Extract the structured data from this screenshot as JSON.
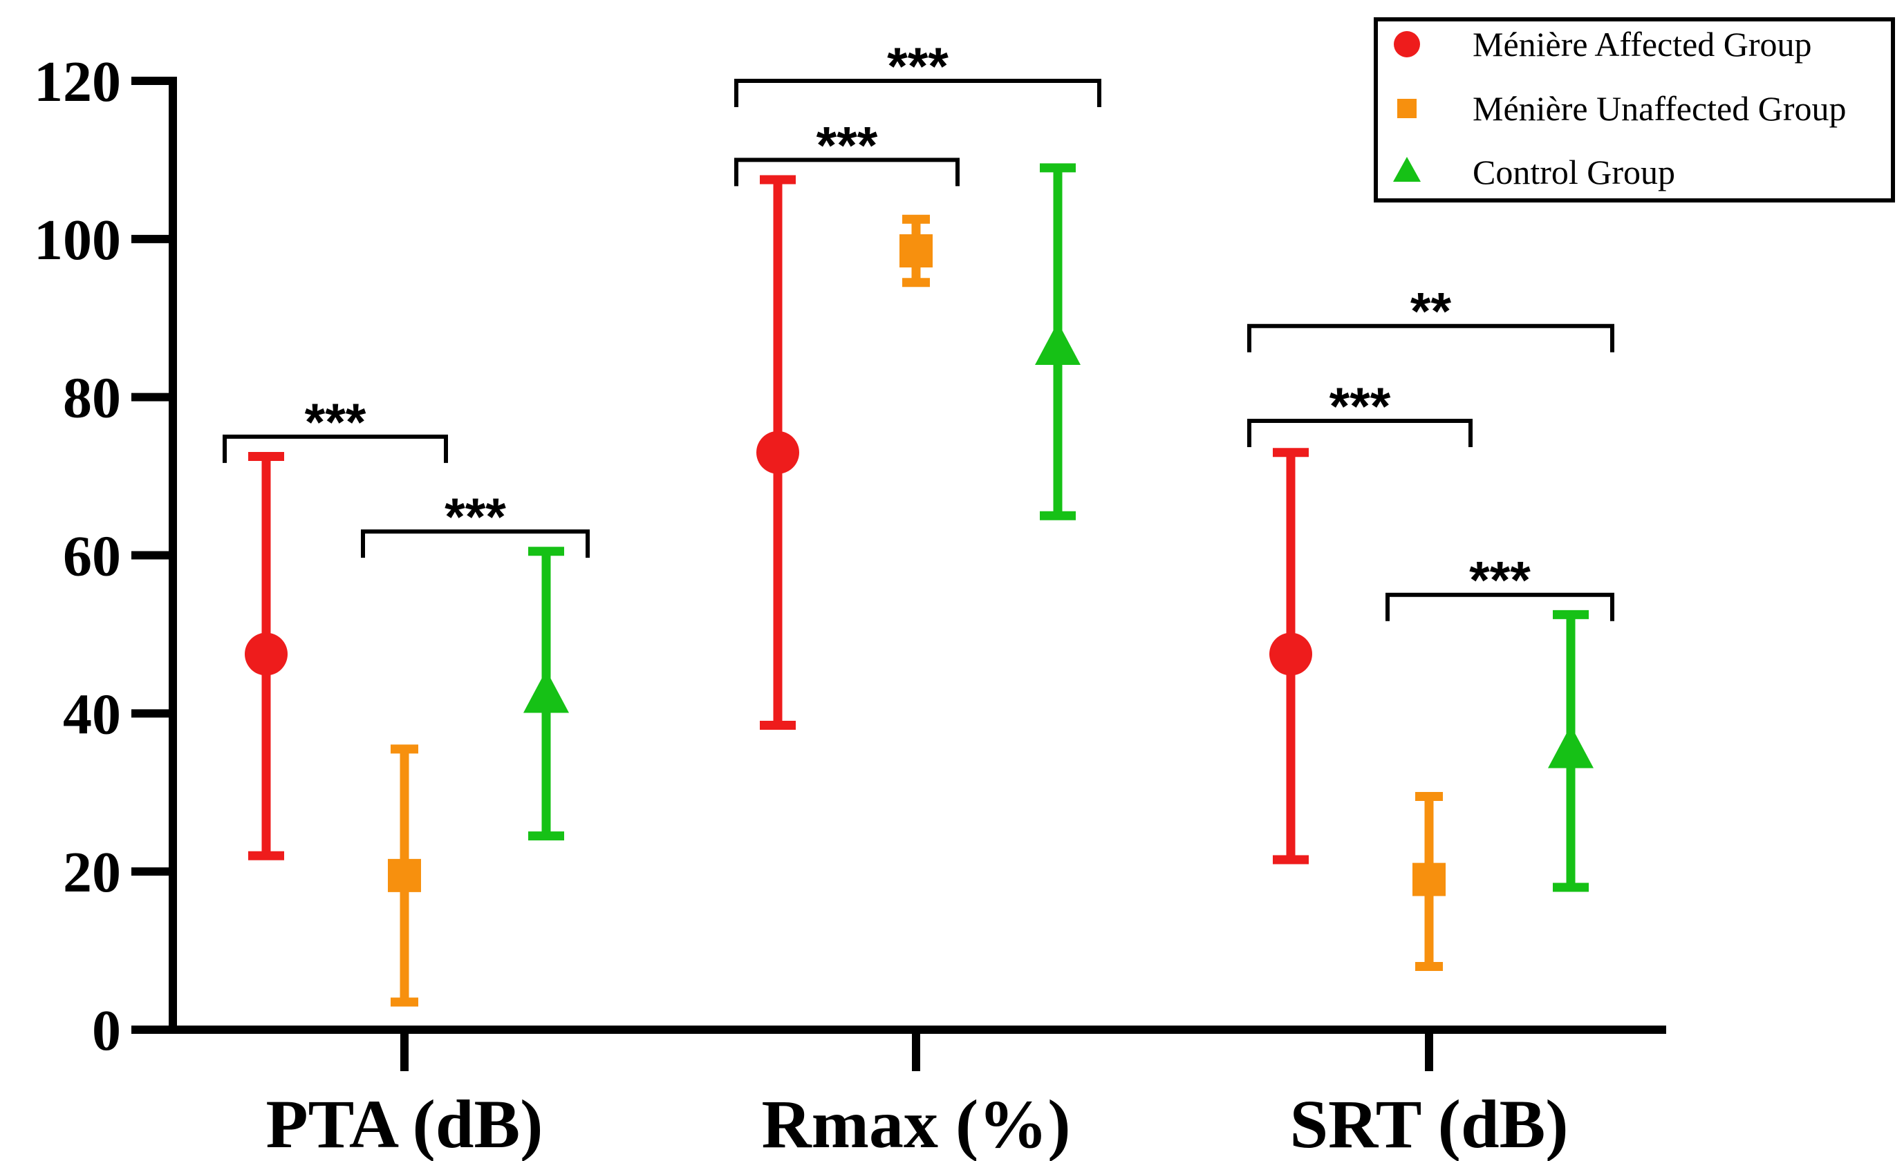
{
  "chart_data": {
    "type": "errorbar",
    "categories": [
      "PTA (dB)",
      "Rmax (%)",
      "SRT (dB)"
    ],
    "ylim": [
      0,
      120
    ],
    "yticks": [
      "0",
      "20",
      "40",
      "60",
      "80",
      "100",
      "120"
    ],
    "series": [
      {
        "name": "Ménière Affected Group",
        "marker": "circle",
        "color": "#ee1c1c",
        "mean": [
          47.5,
          73.0,
          47.5
        ],
        "low": [
          22.0,
          38.5,
          21.5
        ],
        "high": [
          72.5,
          107.5,
          73.0
        ]
      },
      {
        "name": "Ménière Unaffected Group",
        "marker": "square",
        "color": "#f7900e",
        "mean": [
          19.5,
          98.5,
          19.0
        ],
        "low": [
          3.5,
          94.5,
          8.0
        ],
        "high": [
          35.5,
          102.5,
          29.5
        ]
      },
      {
        "name": "Control Group",
        "marker": "triangle",
        "color": "#16c116",
        "mean": [
          42.0,
          86.0,
          35.0
        ],
        "low": [
          24.5,
          65.0,
          18.0
        ],
        "high": [
          60.5,
          109.0,
          52.5
        ]
      }
    ],
    "significance": [
      {
        "category": 0,
        "from": 0,
        "to": 1,
        "label": "***",
        "y": 75
      },
      {
        "category": 0,
        "from": 1,
        "to": 2,
        "label": "***",
        "y": 63
      },
      {
        "category": 1,
        "from": 0,
        "to": 1,
        "label": "***",
        "y": 110
      },
      {
        "category": 1,
        "from": 0,
        "to": 2,
        "label": "***",
        "y": 120
      },
      {
        "category": 2,
        "from": 0,
        "to": 1,
        "label": "***",
        "y": 77
      },
      {
        "category": 2,
        "from": 1,
        "to": 2,
        "label": "***",
        "y": 55
      },
      {
        "category": 2,
        "from": 0,
        "to": 2,
        "label": "**",
        "y": 89
      }
    ],
    "legend_position": "top-right"
  }
}
